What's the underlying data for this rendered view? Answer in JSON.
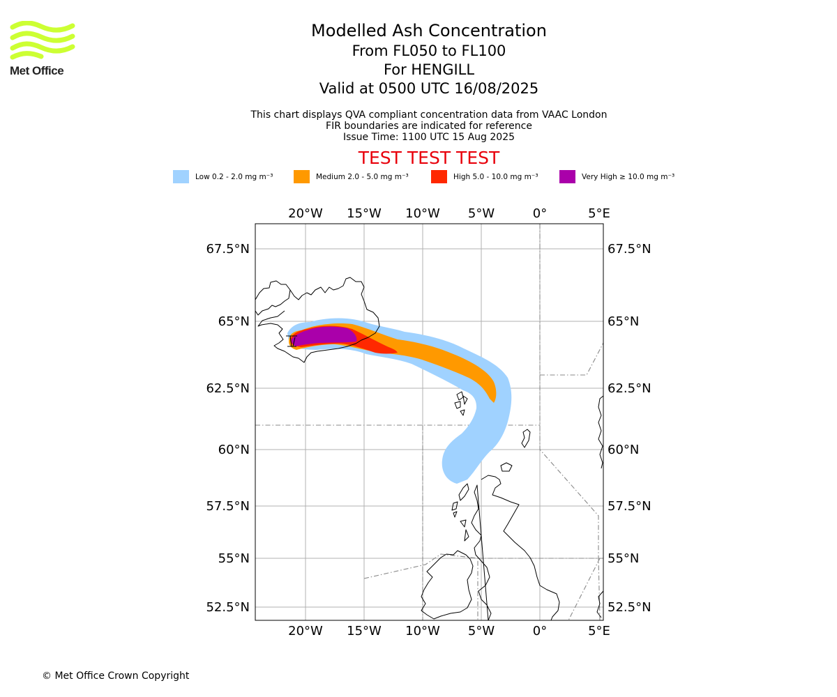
{
  "logo": {
    "text": "Met Office",
    "color": "#ccff33"
  },
  "title": {
    "main": "Modelled Ash Concentration",
    "levels": "From FL050 to FL100",
    "location": "For HENGILL",
    "valid": "Valid at 0500 UTC 16/08/2025"
  },
  "subtitle": {
    "line1": "This chart displays QVA compliant concentration data from VAAC London",
    "line2": "FIR boundaries are indicated for reference",
    "line3": "Issue Time: 1100 UTC 15 Aug 2025"
  },
  "test_banner": "TEST TEST TEST",
  "legend": [
    {
      "label": "Low 0.2 - 2.0 mg m⁻³",
      "color": "#a0d2ff"
    },
    {
      "label": "Medium 2.0 - 5.0 mg m⁻³",
      "color": "#ff9900"
    },
    {
      "label": "High 5.0 - 10.0 mg m⁻³",
      "color": "#ff2800"
    },
    {
      "label": "Very High ≥ 10.0 mg m⁻³",
      "color": "#aa00aa"
    }
  ],
  "map": {
    "lon_ticks": [
      "20°W",
      "15°W",
      "10°W",
      "5°W",
      "0°",
      "5°E"
    ],
    "lat_ticks": [
      "67.5°N",
      "65°N",
      "62.5°N",
      "60°N",
      "57.5°N",
      "55°N",
      "52.5°N"
    ]
  },
  "copyright": "© Met Office Crown Copyright"
}
